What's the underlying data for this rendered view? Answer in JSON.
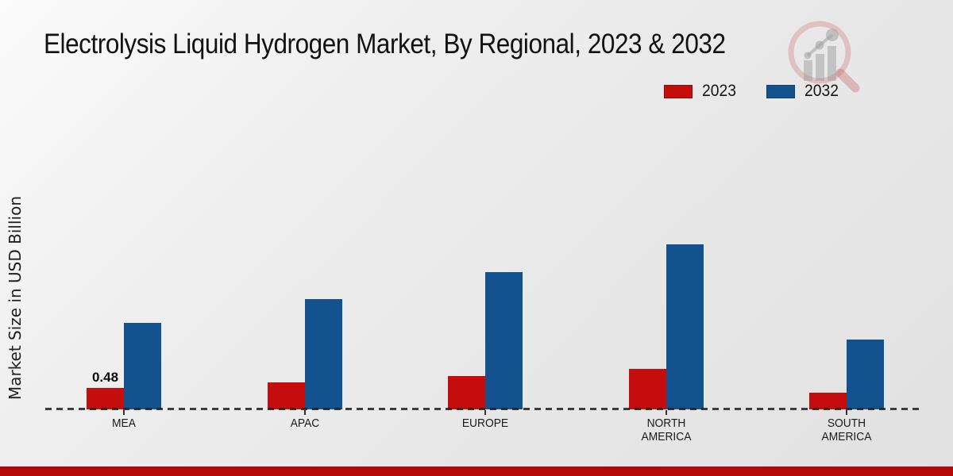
{
  "title": "Electrolysis Liquid Hydrogen Market, By Regional, 2023 & 2032",
  "colors": {
    "series_2023_red": "#c50d0d",
    "series_2032_blue": "#14528f",
    "footer_bar_red": "#b30808"
  },
  "watermark_icon": "magnifier-bar-chart-logo",
  "chart_data": {
    "type": "bar",
    "title": "Electrolysis Liquid Hydrogen Market, By Regional, 2023 & 2032",
    "xlabel": "",
    "ylabel": "Market Size in USD Billion",
    "categories": [
      "MEA",
      "APAC",
      "EUROPE",
      "NORTH AMERICA",
      "SOUTH AMERICA"
    ],
    "series": [
      {
        "name": "2023",
        "color": "#c50d0d",
        "values": [
          0.48,
          0.6,
          0.75,
          0.91,
          0.38
        ]
      },
      {
        "name": "2032",
        "color": "#14528f",
        "values": [
          1.94,
          2.47,
          3.08,
          3.7,
          1.56
        ]
      }
    ],
    "value_labels": [
      {
        "category": "MEA",
        "series": "2023",
        "text": "0.48"
      }
    ],
    "ylim": [
      0,
      4
    ],
    "grid": false,
    "baseline_style": "dashed",
    "legend_position": "top-right"
  }
}
